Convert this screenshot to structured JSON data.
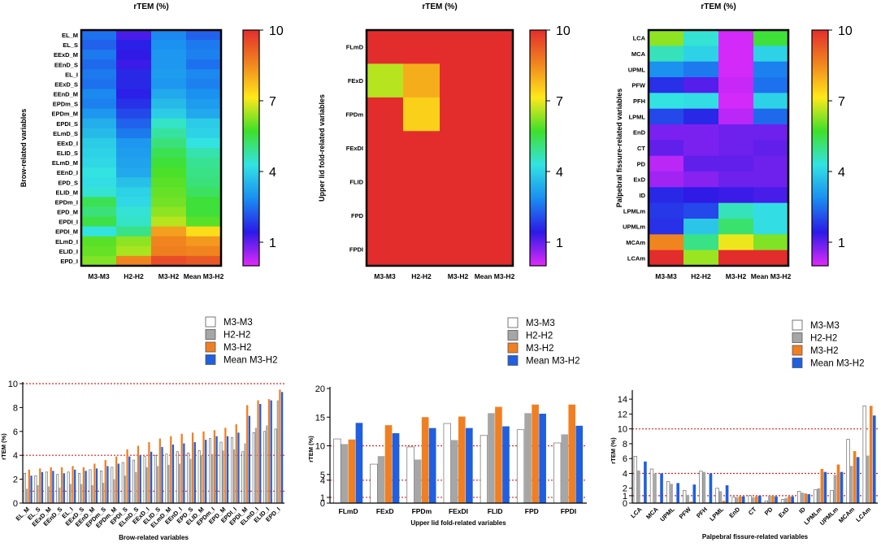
{
  "colorbar": {
    "ticks": [
      "10",
      "7",
      "4",
      "1"
    ],
    "tick_values": [
      10,
      7,
      4,
      1
    ],
    "range": [
      0,
      10
    ],
    "stops": [
      "#e02afa",
      "#2b1ae6",
      "#1a8ef0",
      "#33e3e3",
      "#3fe02a",
      "#ffe81a",
      "#f0861e",
      "#e32d2d"
    ]
  },
  "threshold_colors": {
    "line": "#e02020"
  },
  "series_colors": {
    "M3-M3": "#ffffff",
    "H2-H2": "#a6a6a6",
    "M3-H2": "#f07f22",
    "Mean M3-H2": "#1f5fe0"
  },
  "chart_data": [
    {
      "type": "heatmap",
      "title": "rTEM (%)",
      "ylabel": "Brow-related variables",
      "columns": [
        "M3-M3",
        "H2-H2",
        "M3-H2",
        "Mean M3-H2"
      ],
      "rows": [
        "EL_M",
        "EL_S",
        "EExD_M",
        "EEnD_S",
        "EL_I",
        "EExD_S",
        "EEnD_M",
        "EPDm_S",
        "EPDm_M",
        "EPDI_S",
        "ELmD_S",
        "EExD_I",
        "ELID_S",
        "ELmD_M",
        "EEnD_I",
        "EPD_S",
        "ELID_M",
        "EPDm_I",
        "EPD_M",
        "EPDI_I",
        "EPDI_M",
        "ELmD_I",
        "ELID_I",
        "EPD_I"
      ],
      "values": [
        [
          2.5,
          1.2,
          2.8,
          2.3
        ],
        [
          2.3,
          1.5,
          2.9,
          2.6
        ],
        [
          2.6,
          1.4,
          3.0,
          2.7
        ],
        [
          2.4,
          1.3,
          3.0,
          2.5
        ],
        [
          2.6,
          1.6,
          3.1,
          2.8
        ],
        [
          2.5,
          1.6,
          3.0,
          2.7
        ],
        [
          2.8,
          1.5,
          3.3,
          2.9
        ],
        [
          2.7,
          1.7,
          3.6,
          3.1
        ],
        [
          3.0,
          2.0,
          3.9,
          3.3
        ],
        [
          3.4,
          2.3,
          4.5,
          3.9
        ],
        [
          3.6,
          2.6,
          4.8,
          4.0
        ],
        [
          3.9,
          3.0,
          5.1,
          4.3
        ],
        [
          4.0,
          3.1,
          5.4,
          4.7
        ],
        [
          4.1,
          3.2,
          5.6,
          4.9
        ],
        [
          4.3,
          3.3,
          5.8,
          5.0
        ],
        [
          4.2,
          3.7,
          5.9,
          5.1
        ],
        [
          4.4,
          4.0,
          6.0,
          5.3
        ],
        [
          5.4,
          4.1,
          6.1,
          5.6
        ],
        [
          5.1,
          4.4,
          6.3,
          5.6
        ],
        [
          5.5,
          4.5,
          6.6,
          5.9
        ],
        [
          4.3,
          5.0,
          8.2,
          7.3
        ],
        [
          5.9,
          6.3,
          8.6,
          8.3
        ],
        [
          6.0,
          6.5,
          8.7,
          8.6
        ],
        [
          6.2,
          8.6,
          9.5,
          9.3
        ]
      ],
      "colorbar_range": [
        0,
        10
      ]
    },
    {
      "type": "heatmap",
      "title": "rTEM (%)",
      "ylabel": "Upper lid fold-related variables",
      "columns": [
        "M3-M3",
        "H2-H2",
        "M3-H2",
        "Mean M3-H2"
      ],
      "rows": [
        "FLmD",
        "FExD",
        "FPDm",
        "FExDI",
        "FLID",
        "FPD",
        "FPDI"
      ],
      "values": [
        [
          10,
          10,
          10,
          10
        ],
        [
          6.6,
          8.0,
          10,
          10
        ],
        [
          10,
          7.5,
          10,
          10
        ],
        [
          10,
          10,
          10,
          10
        ],
        [
          10,
          10,
          10,
          10
        ],
        [
          10,
          10,
          10,
          10
        ],
        [
          10,
          10,
          10,
          10
        ]
      ],
      "colorbar_range": [
        0,
        10
      ]
    },
    {
      "type": "heatmap",
      "title": "rTEM (%)",
      "ylabel": "Palpebral fissure-related variables",
      "columns": [
        "M3-M3",
        "H2-H2",
        "M3-H2",
        "Mean M3-H2"
      ],
      "rows": [
        "LCA",
        "MCA",
        "UPML",
        "PFW",
        "PFH",
        "LPML",
        "EnD",
        "CT",
        "PD",
        "ExD",
        "ID",
        "LPMLm",
        "UPMLm",
        "MCAm",
        "LCAm"
      ],
      "values": [
        [
          6.3,
          4.4,
          0.1,
          5.6
        ],
        [
          4.6,
          4.0,
          0.1,
          4.0
        ],
        [
          2.9,
          2.6,
          0.1,
          2.7
        ],
        [
          1.7,
          1.1,
          0.2,
          2.5
        ],
        [
          4.3,
          4.2,
          0.1,
          4.0
        ],
        [
          2.0,
          1.6,
          0.3,
          2.4
        ],
        [
          0.8,
          0.8,
          0.9,
          0.9
        ],
        [
          1.0,
          0.8,
          0.9,
          1.0
        ],
        [
          0.3,
          1.0,
          1.0,
          0.9
        ],
        [
          0.5,
          0.7,
          0.9,
          0.9
        ],
        [
          1.6,
          1.4,
          1.3,
          1.2
        ],
        [
          1.8,
          2.0,
          4.6,
          4.2
        ],
        [
          1.7,
          3.8,
          5.2,
          4.2
        ],
        [
          8.6,
          5.0,
          7.0,
          6.2
        ],
        [
          13.1,
          6.4,
          13.1,
          11.8
        ]
      ],
      "colorbar_range": [
        0,
        10
      ]
    },
    {
      "type": "bar",
      "xlabel": "Brow-related variables",
      "ylabel": "rTEM (%)",
      "ylim": [
        0,
        10
      ],
      "yticks": [
        "0",
        "2",
        "4",
        "6",
        "8",
        "10"
      ],
      "ytick_values": [
        0,
        2,
        4,
        6,
        8,
        10
      ],
      "thresholds": [
        1,
        4,
        10
      ],
      "categories": [
        "EL_M",
        "EL_S",
        "EExD_M",
        "EEnD_S",
        "EL_I",
        "EExD_S",
        "EEnD_M",
        "EPDm_S",
        "EPDm_M",
        "EPDI_S",
        "ELmD_S",
        "EExD_I",
        "ELID_S",
        "ELmD_M",
        "EEnD_I",
        "EPD_S",
        "ELID_M",
        "EPDm_I",
        "EPD_M",
        "EPDI_I",
        "EPDI_M",
        "ELmD_I",
        "ELID_I",
        "EPD_I"
      ],
      "series": [
        {
          "name": "M3-M3",
          "values": [
            2.5,
            2.3,
            2.6,
            2.4,
            2.6,
            2.5,
            2.8,
            2.7,
            3.0,
            3.4,
            3.6,
            3.9,
            4.0,
            4.1,
            4.3,
            4.2,
            4.4,
            5.4,
            5.1,
            5.5,
            4.3,
            5.9,
            6.0,
            6.2
          ]
        },
        {
          "name": "H2-H2",
          "values": [
            1.2,
            1.5,
            1.4,
            1.3,
            1.6,
            1.6,
            1.5,
            1.7,
            2.0,
            2.3,
            2.6,
            3.0,
            3.1,
            3.2,
            3.3,
            3.7,
            4.0,
            4.1,
            4.4,
            4.5,
            5.0,
            6.3,
            6.5,
            8.6
          ]
        },
        {
          "name": "M3-H2",
          "values": [
            2.8,
            2.9,
            3.0,
            3.0,
            3.1,
            3.0,
            3.3,
            3.6,
            3.9,
            4.5,
            4.8,
            5.1,
            5.4,
            5.6,
            5.8,
            5.9,
            6.0,
            6.1,
            6.3,
            6.6,
            8.2,
            8.6,
            8.7,
            9.5
          ]
        },
        {
          "name": "Mean M3-H2",
          "values": [
            2.3,
            2.6,
            2.7,
            2.5,
            2.8,
            2.7,
            2.9,
            3.1,
            3.3,
            3.9,
            4.0,
            4.3,
            4.7,
            4.9,
            5.0,
            5.1,
            5.3,
            5.6,
            5.6,
            5.9,
            7.3,
            8.3,
            8.6,
            9.3
          ]
        }
      ]
    },
    {
      "type": "bar",
      "xlabel": "Upper lid fold-related variables",
      "ylabel": "rTEM (%)",
      "ylim": [
        0,
        20
      ],
      "yticks": [
        "0",
        "1",
        "4",
        "5",
        "10",
        "15",
        "20"
      ],
      "ytick_values": [
        0,
        1,
        4,
        5,
        10,
        15,
        20
      ],
      "thresholds": [
        1,
        4,
        10
      ],
      "categories": [
        "FLmD",
        "FExD",
        "FPDm",
        "FExDI",
        "FLID",
        "FPD",
        "FPDI"
      ],
      "series": [
        {
          "name": "M3-M3",
          "values": [
            11.2,
            6.8,
            9.8,
            13.9,
            11.8,
            12.8,
            10.5
          ]
        },
        {
          "name": "H2-H2",
          "values": [
            10.3,
            8.2,
            7.6,
            11.0,
            15.7,
            15.7,
            12.0
          ]
        },
        {
          "name": "M3-H2",
          "values": [
            11.1,
            13.6,
            15.0,
            15.1,
            16.8,
            17.2,
            17.2
          ]
        },
        {
          "name": "Mean M3-H2",
          "values": [
            14.0,
            12.2,
            13.1,
            13.1,
            13.4,
            15.6,
            13.5
          ]
        }
      ]
    },
    {
      "type": "bar",
      "xlabel": "Palpebral fissure-related variables",
      "ylabel": "rTEM (%)",
      "ylim": [
        0,
        15
      ],
      "yticks": [
        "0",
        "1",
        "2",
        "4",
        "6",
        "8",
        "10",
        "12",
        "14"
      ],
      "ytick_values": [
        0,
        1,
        2,
        4,
        6,
        8,
        10,
        12,
        14
      ],
      "thresholds": [
        1,
        4,
        10
      ],
      "categories": [
        "LCA",
        "MCA",
        "UPML",
        "PFW",
        "PFH",
        "LPML",
        "EnD",
        "CT",
        "PD",
        "ExD",
        "ID",
        "LPMLm",
        "UPMLm",
        "MCAm",
        "LCAm"
      ],
      "series": [
        {
          "name": "M3-M3",
          "values": [
            6.3,
            4.6,
            2.9,
            1.7,
            4.3,
            2.0,
            0.8,
            1.0,
            0.3,
            0.5,
            1.6,
            1.8,
            1.7,
            8.6,
            13.1
          ]
        },
        {
          "name": "H2-H2",
          "values": [
            4.4,
            4.0,
            2.6,
            1.1,
            4.2,
            1.6,
            0.8,
            0.8,
            1.0,
            0.7,
            1.4,
            2.0,
            3.8,
            5.0,
            6.4
          ]
        },
        {
          "name": "M3-H2",
          "values": [
            0.1,
            0.1,
            0.1,
            0.2,
            0.1,
            0.3,
            0.9,
            0.9,
            1.0,
            0.9,
            1.3,
            4.6,
            5.2,
            7.0,
            13.1
          ]
        },
        {
          "name": "Mean M3-H2",
          "values": [
            5.6,
            4.0,
            2.7,
            2.5,
            4.0,
            2.4,
            0.9,
            1.0,
            0.9,
            0.9,
            1.2,
            4.2,
            4.2,
            6.2,
            11.8
          ]
        }
      ]
    }
  ]
}
